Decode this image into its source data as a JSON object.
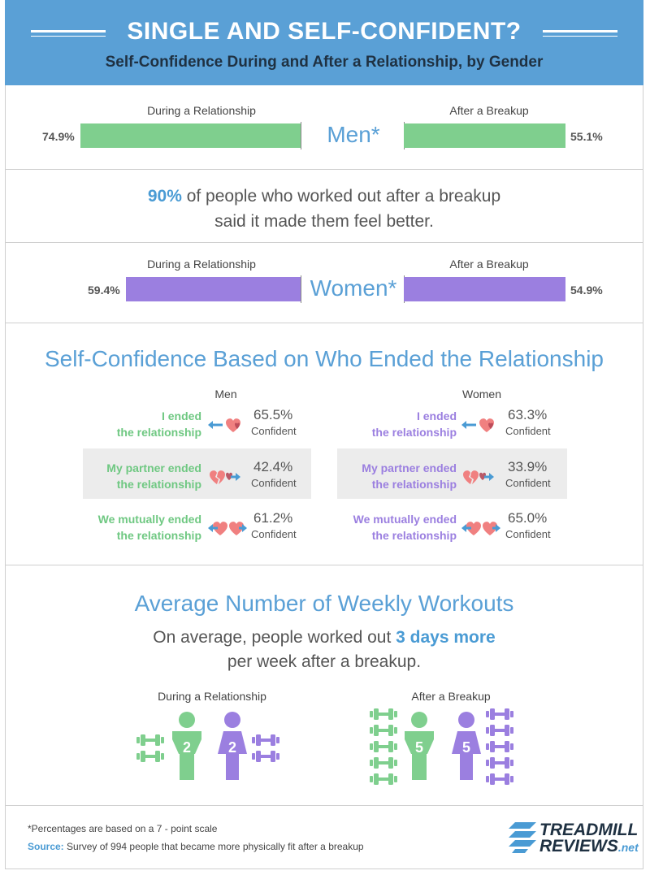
{
  "header": {
    "title": "SINGLE AND SELF-CONFIDENT?",
    "subtitle": "Self-Confidence During and After a Relationship, by Gender"
  },
  "men_bars": {
    "label_left": "During a Relationship",
    "label_right": "After a Breakup",
    "center": "Men*",
    "during_value": "74.9%",
    "after_value": "55.1%",
    "during_fraction": 0.749,
    "after_fraction": 0.551,
    "color": "#7fcf8e"
  },
  "stat1": {
    "highlight": "90%",
    "line1_rest": " of people who worked out after a breakup",
    "line2": "said it made them feel better."
  },
  "women_bars": {
    "label_left": "During a Relationship",
    "label_right": "After a Breakup",
    "center": "Women*",
    "during_value": "59.4%",
    "after_value": "54.9%",
    "during_fraction": 0.594,
    "after_fraction": 0.549,
    "color": "#9b7fe0"
  },
  "who_ended": {
    "title": "Self-Confidence Based on Who Ended the Relationship",
    "men_head": "Men",
    "women_head": "Women",
    "confident_word": "Confident",
    "men_color": "#6fc882",
    "women_color": "#9b7fe0",
    "men": [
      {
        "line1": "I ended",
        "line2": "the relationship",
        "value": "65.5%"
      },
      {
        "line1": "My partner ended",
        "line2": "the relationship",
        "value": "42.4%"
      },
      {
        "line1": "We mutually ended",
        "line2": "the relationship",
        "value": "61.2%"
      }
    ],
    "women": [
      {
        "line1": "I ended",
        "line2": "the relationship",
        "value": "63.3%"
      },
      {
        "line1": "My partner ended",
        "line2": "the relationship",
        "value": "33.9%"
      },
      {
        "line1": "We mutually ended",
        "line2": "the relationship",
        "value": "65.0%"
      }
    ]
  },
  "workouts": {
    "title": "Average Number of Weekly Workouts",
    "line1_pre": "On average, people worked out ",
    "line1_hl": "3 days more",
    "line2": "per week after a breakup.",
    "during_label": "During a Relationship",
    "after_label": "After a Breakup",
    "during_men": "2",
    "during_women": "2",
    "after_men": "5",
    "after_women": "5"
  },
  "footer": {
    "note": "*Percentages are based on a 7 - point scale",
    "source_label": "Source:",
    "source_text": " Survey of 994 people that became more physically fit after a breakup",
    "logo_line1": "TREADMILL",
    "logo_line2": "REVIEWS",
    "logo_net": ".net"
  },
  "colors": {
    "header_bg": "#5aa0d6",
    "accent_blue": "#4a9bd4",
    "green": "#7fcf8e",
    "purple": "#9b7fe0",
    "heart": "#f08080",
    "arrow": "#4a9bd4"
  }
}
